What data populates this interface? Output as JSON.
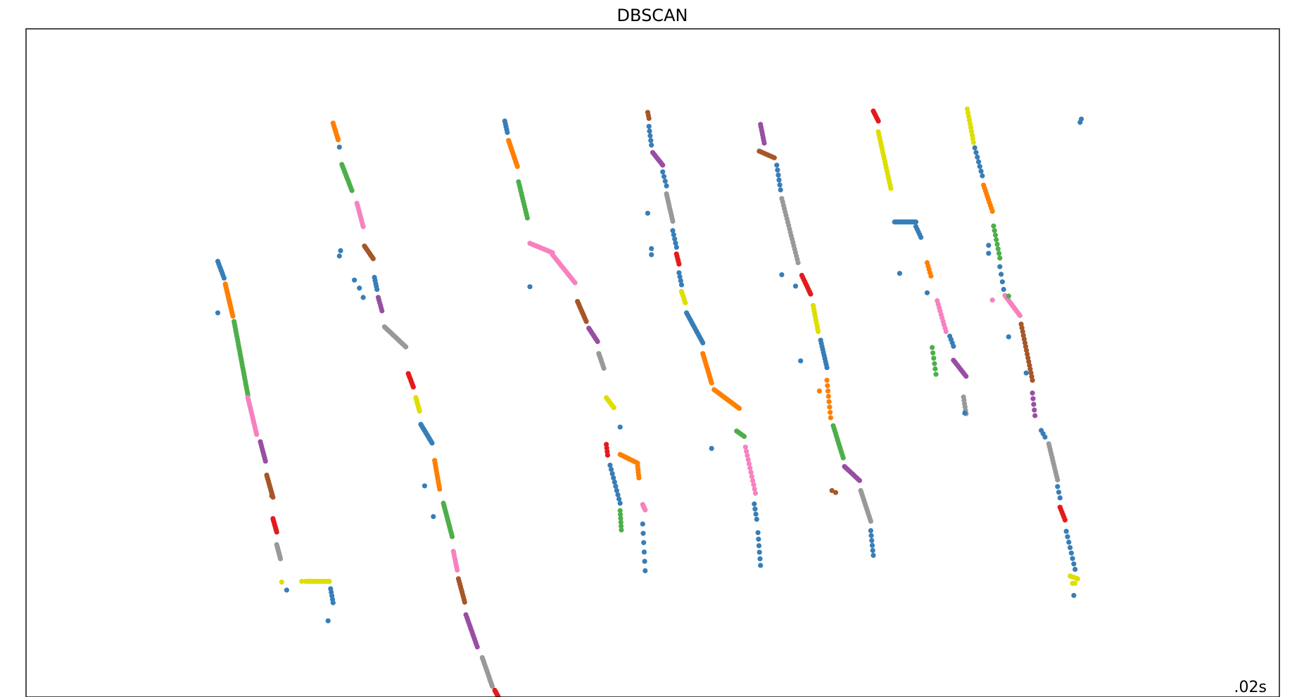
{
  "chart_data": {
    "type": "scatter",
    "title": "DBSCAN",
    "annotation": ".02s",
    "annotation_placement": "bottom-right",
    "xlabel": "",
    "ylabel": "",
    "xlim": [
      0,
      1
    ],
    "ylim": [
      0,
      1
    ],
    "axis_ticks": false,
    "grid": false,
    "legend": "none",
    "marker": "circle",
    "segments": [
      {
        "x0": 0.153,
        "y0": 0.652,
        "x1": 0.158,
        "y1": 0.627,
        "color": "#377eb8",
        "n": 8
      },
      {
        "x0": 0.159,
        "y0": 0.618,
        "x1": 0.165,
        "y1": 0.57,
        "color": "#ff7f00",
        "n": 18
      },
      {
        "x0": 0.166,
        "y0": 0.562,
        "x1": 0.177,
        "y1": 0.452,
        "color": "#4daf4a",
        "n": 30
      },
      {
        "x0": 0.177,
        "y0": 0.448,
        "x1": 0.184,
        "y1": 0.393,
        "color": "#f781bf",
        "n": 16
      },
      {
        "x0": 0.187,
        "y0": 0.382,
        "x1": 0.191,
        "y1": 0.353,
        "color": "#984ea3",
        "n": 9
      },
      {
        "x0": 0.192,
        "y0": 0.332,
        "x1": 0.197,
        "y1": 0.299,
        "color": "#a65628",
        "n": 12
      },
      {
        "x0": 0.197,
        "y0": 0.267,
        "x1": 0.2,
        "y1": 0.247,
        "color": "#e41a1c",
        "n": 8
      },
      {
        "x0": 0.2,
        "y0": 0.228,
        "x1": 0.203,
        "y1": 0.207,
        "color": "#999999",
        "n": 10
      },
      {
        "x0": 0.223,
        "y0": 0.173,
        "x1": 0.242,
        "y1": 0.173,
        "color": "#dede00",
        "n": 16
      },
      {
        "x0": 0.243,
        "y0": 0.162,
        "x1": 0.245,
        "y1": 0.141,
        "color": "#377eb8",
        "n": 5
      },
      {
        "x0": 0.245,
        "y0": 0.859,
        "x1": 0.249,
        "y1": 0.834,
        "color": "#ff7f00",
        "n": 9
      },
      {
        "x0": 0.252,
        "y0": 0.797,
        "x1": 0.26,
        "y1": 0.758,
        "color": "#4daf4a",
        "n": 15
      },
      {
        "x0": 0.264,
        "y0": 0.739,
        "x1": 0.269,
        "y1": 0.704,
        "color": "#f781bf",
        "n": 10
      },
      {
        "x0": 0.27,
        "y0": 0.675,
        "x1": 0.277,
        "y1": 0.656,
        "color": "#a65628",
        "n": 11
      },
      {
        "x0": 0.278,
        "y0": 0.628,
        "x1": 0.28,
        "y1": 0.61,
        "color": "#377eb8",
        "n": 5
      },
      {
        "x0": 0.281,
        "y0": 0.598,
        "x1": 0.284,
        "y1": 0.578,
        "color": "#984ea3",
        "n": 6
      },
      {
        "x0": 0.286,
        "y0": 0.554,
        "x1": 0.303,
        "y1": 0.524,
        "color": "#999999",
        "n": 22
      },
      {
        "x0": 0.305,
        "y0": 0.484,
        "x1": 0.309,
        "y1": 0.464,
        "color": "#e41a1c",
        "n": 8
      },
      {
        "x0": 0.311,
        "y0": 0.448,
        "x1": 0.314,
        "y1": 0.428,
        "color": "#dede00",
        "n": 9
      },
      {
        "x0": 0.315,
        "y0": 0.408,
        "x1": 0.324,
        "y1": 0.38,
        "color": "#377eb8",
        "n": 14
      },
      {
        "x0": 0.326,
        "y0": 0.354,
        "x1": 0.33,
        "y1": 0.311,
        "color": "#ff7f00",
        "n": 12
      },
      {
        "x0": 0.333,
        "y0": 0.29,
        "x1": 0.34,
        "y1": 0.24,
        "color": "#4daf4a",
        "n": 16
      },
      {
        "x0": 0.341,
        "y0": 0.218,
        "x1": 0.344,
        "y1": 0.19,
        "color": "#f781bf",
        "n": 8
      },
      {
        "x0": 0.345,
        "y0": 0.177,
        "x1": 0.35,
        "y1": 0.142,
        "color": "#a65628",
        "n": 10
      },
      {
        "x0": 0.351,
        "y0": 0.123,
        "x1": 0.36,
        "y1": 0.075,
        "color": "#984ea3",
        "n": 14
      },
      {
        "x0": 0.364,
        "y0": 0.059,
        "x1": 0.372,
        "y1": 0.016,
        "color": "#999999",
        "n": 14
      },
      {
        "x0": 0.374,
        "y0": 0.01,
        "x1": 0.378,
        "y1": -0.004,
        "color": "#e41a1c",
        "n": 8
      },
      {
        "x0": 0.382,
        "y0": 0.862,
        "x1": 0.384,
        "y1": 0.845,
        "color": "#377eb8",
        "n": 5
      },
      {
        "x0": 0.385,
        "y0": 0.833,
        "x1": 0.392,
        "y1": 0.794,
        "color": "#ff7f00",
        "n": 15
      },
      {
        "x0": 0.393,
        "y0": 0.771,
        "x1": 0.4,
        "y1": 0.717,
        "color": "#4daf4a",
        "n": 14
      },
      {
        "x0": 0.402,
        "y0": 0.679,
        "x1": 0.42,
        "y1": 0.665,
        "color": "#f781bf",
        "n": 18
      },
      {
        "x0": 0.42,
        "y0": 0.662,
        "x1": 0.438,
        "y1": 0.62,
        "color": "#f781bf",
        "n": 16
      },
      {
        "x0": 0.44,
        "y0": 0.592,
        "x1": 0.447,
        "y1": 0.562,
        "color": "#a65628",
        "n": 12
      },
      {
        "x0": 0.449,
        "y0": 0.552,
        "x1": 0.456,
        "y1": 0.532,
        "color": "#984ea3",
        "n": 10
      },
      {
        "x0": 0.457,
        "y0": 0.514,
        "x1": 0.461,
        "y1": 0.492,
        "color": "#999999",
        "n": 8
      },
      {
        "x0": 0.463,
        "y0": 0.448,
        "x1": 0.469,
        "y1": 0.433,
        "color": "#dede00",
        "n": 8
      },
      {
        "x0": 0.463,
        "y0": 0.378,
        "x1": 0.464,
        "y1": 0.362,
        "color": "#e41a1c",
        "n": 4
      },
      {
        "x0": 0.474,
        "y0": 0.363,
        "x1": 0.488,
        "y1": 0.35,
        "color": "#ff7f00",
        "n": 14
      },
      {
        "x0": 0.488,
        "y0": 0.345,
        "x1": 0.489,
        "y1": 0.328,
        "color": "#ff7f00",
        "n": 5
      },
      {
        "x0": 0.466,
        "y0": 0.347,
        "x1": 0.474,
        "y1": 0.29,
        "color": "#377eb8",
        "n": 10
      },
      {
        "x0": 0.474,
        "y0": 0.279,
        "x1": 0.475,
        "y1": 0.25,
        "color": "#4daf4a",
        "n": 6
      },
      {
        "x0": 0.492,
        "y0": 0.288,
        "x1": 0.494,
        "y1": 0.28,
        "color": "#f781bf",
        "n": 4
      },
      {
        "x0": 0.492,
        "y0": 0.259,
        "x1": 0.494,
        "y1": 0.189,
        "color": "#377eb8",
        "n": 6
      },
      {
        "x0": 0.496,
        "y0": 0.875,
        "x1": 0.497,
        "y1": 0.866,
        "color": "#a65628",
        "n": 3
      },
      {
        "x0": 0.497,
        "y0": 0.854,
        "x1": 0.499,
        "y1": 0.826,
        "color": "#377eb8",
        "n": 5
      },
      {
        "x0": 0.5,
        "y0": 0.815,
        "x1": 0.508,
        "y1": 0.796,
        "color": "#984ea3",
        "n": 10
      },
      {
        "x0": 0.508,
        "y0": 0.786,
        "x1": 0.511,
        "y1": 0.765,
        "color": "#377eb8",
        "n": 4
      },
      {
        "x0": 0.511,
        "y0": 0.753,
        "x1": 0.516,
        "y1": 0.712,
        "color": "#999999",
        "n": 12
      },
      {
        "x0": 0.516,
        "y0": 0.698,
        "x1": 0.519,
        "y1": 0.673,
        "color": "#377eb8",
        "n": 5
      },
      {
        "x0": 0.519,
        "y0": 0.663,
        "x1": 0.521,
        "y1": 0.648,
        "color": "#e41a1c",
        "n": 5
      },
      {
        "x0": 0.521,
        "y0": 0.635,
        "x1": 0.523,
        "y1": 0.617,
        "color": "#377eb8",
        "n": 4
      },
      {
        "x0": 0.523,
        "y0": 0.607,
        "x1": 0.526,
        "y1": 0.59,
        "color": "#dede00",
        "n": 6
      },
      {
        "x0": 0.527,
        "y0": 0.575,
        "x1": 0.54,
        "y1": 0.53,
        "color": "#377eb8",
        "n": 16
      },
      {
        "x0": 0.54,
        "y0": 0.514,
        "x1": 0.547,
        "y1": 0.47,
        "color": "#ff7f00",
        "n": 14
      },
      {
        "x0": 0.549,
        "y0": 0.46,
        "x1": 0.569,
        "y1": 0.432,
        "color": "#ff7f00",
        "n": 22
      },
      {
        "x0": 0.567,
        "y0": 0.398,
        "x1": 0.573,
        "y1": 0.39,
        "color": "#4daf4a",
        "n": 6
      },
      {
        "x0": 0.574,
        "y0": 0.374,
        "x1": 0.582,
        "y1": 0.305,
        "color": "#f781bf",
        "n": 12
      },
      {
        "x0": 0.581,
        "y0": 0.289,
        "x1": 0.583,
        "y1": 0.266,
        "color": "#377eb8",
        "n": 4
      },
      {
        "x0": 0.584,
        "y0": 0.246,
        "x1": 0.586,
        "y1": 0.197,
        "color": "#377eb8",
        "n": 6
      },
      {
        "x0": 0.586,
        "y0": 0.857,
        "x1": 0.589,
        "y1": 0.829,
        "color": "#984ea3",
        "n": 8
      },
      {
        "x0": 0.585,
        "y0": 0.817,
        "x1": 0.597,
        "y1": 0.807,
        "color": "#a65628",
        "n": 10
      },
      {
        "x0": 0.599,
        "y0": 0.796,
        "x1": 0.602,
        "y1": 0.759,
        "color": "#377eb8",
        "n": 6
      },
      {
        "x0": 0.603,
        "y0": 0.746,
        "x1": 0.616,
        "y1": 0.65,
        "color": "#999999",
        "n": 20
      },
      {
        "x0": 0.619,
        "y0": 0.631,
        "x1": 0.626,
        "y1": 0.603,
        "color": "#e41a1c",
        "n": 10
      },
      {
        "x0": 0.628,
        "y0": 0.586,
        "x1": 0.632,
        "y1": 0.547,
        "color": "#dede00",
        "n": 10
      },
      {
        "x0": 0.634,
        "y0": 0.534,
        "x1": 0.639,
        "y1": 0.493,
        "color": "#377eb8",
        "n": 10
      },
      {
        "x0": 0.639,
        "y0": 0.474,
        "x1": 0.642,
        "y1": 0.418,
        "color": "#ff7f00",
        "n": 8
      },
      {
        "x0": 0.644,
        "y0": 0.406,
        "x1": 0.652,
        "y1": 0.358,
        "color": "#4daf4a",
        "n": 14
      },
      {
        "x0": 0.653,
        "y0": 0.345,
        "x1": 0.665,
        "y1": 0.324,
        "color": "#984ea3",
        "n": 12
      },
      {
        "x0": 0.666,
        "y0": 0.309,
        "x1": 0.674,
        "y1": 0.263,
        "color": "#999999",
        "n": 14
      },
      {
        "x0": 0.674,
        "y0": 0.249,
        "x1": 0.676,
        "y1": 0.212,
        "color": "#377eb8",
        "n": 6
      },
      {
        "x0": 0.676,
        "y0": 0.877,
        "x1": 0.68,
        "y1": 0.862,
        "color": "#e41a1c",
        "n": 6
      },
      {
        "x0": 0.68,
        "y0": 0.846,
        "x1": 0.69,
        "y1": 0.761,
        "color": "#dede00",
        "n": 20
      },
      {
        "x0": 0.693,
        "y0": 0.711,
        "x1": 0.71,
        "y1": 0.711,
        "color": "#377eb8",
        "n": 18
      },
      {
        "x0": 0.71,
        "y0": 0.704,
        "x1": 0.714,
        "y1": 0.688,
        "color": "#377eb8",
        "n": 5
      },
      {
        "x0": 0.719,
        "y0": 0.65,
        "x1": 0.722,
        "y1": 0.63,
        "color": "#ff7f00",
        "n": 5
      },
      {
        "x0": 0.727,
        "y0": 0.593,
        "x1": 0.734,
        "y1": 0.547,
        "color": "#f781bf",
        "n": 10
      },
      {
        "x0": 0.723,
        "y0": 0.523,
        "x1": 0.726,
        "y1": 0.483,
        "color": "#4daf4a",
        "n": 6
      },
      {
        "x0": 0.737,
        "y0": 0.54,
        "x1": 0.74,
        "y1": 0.525,
        "color": "#377eb8",
        "n": 4
      },
      {
        "x0": 0.74,
        "y0": 0.504,
        "x1": 0.75,
        "y1": 0.48,
        "color": "#984ea3",
        "n": 10
      },
      {
        "x0": 0.748,
        "y0": 0.449,
        "x1": 0.75,
        "y1": 0.424,
        "color": "#999999",
        "n": 6
      },
      {
        "x0": 0.751,
        "y0": 0.88,
        "x1": 0.756,
        "y1": 0.83,
        "color": "#dede00",
        "n": 10
      },
      {
        "x0": 0.757,
        "y0": 0.822,
        "x1": 0.763,
        "y1": 0.78,
        "color": "#377eb8",
        "n": 7
      },
      {
        "x0": 0.764,
        "y0": 0.766,
        "x1": 0.771,
        "y1": 0.727,
        "color": "#ff7f00",
        "n": 10
      },
      {
        "x0": 0.772,
        "y0": 0.705,
        "x1": 0.777,
        "y1": 0.657,
        "color": "#4daf4a",
        "n": 8
      },
      {
        "x0": 0.777,
        "y0": 0.644,
        "x1": 0.78,
        "y1": 0.61,
        "color": "#377eb8",
        "n": 4
      },
      {
        "x0": 0.781,
        "y0": 0.601,
        "x1": 0.793,
        "y1": 0.571,
        "color": "#f781bf",
        "n": 14
      },
      {
        "x0": 0.794,
        "y0": 0.558,
        "x1": 0.803,
        "y1": 0.474,
        "color": "#a65628",
        "n": 16
      },
      {
        "x0": 0.803,
        "y0": 0.455,
        "x1": 0.805,
        "y1": 0.421,
        "color": "#984ea3",
        "n": 5
      },
      {
        "x0": 0.81,
        "y0": 0.399,
        "x1": 0.813,
        "y1": 0.389,
        "color": "#377eb8",
        "n": 3
      },
      {
        "x0": 0.816,
        "y0": 0.379,
        "x1": 0.823,
        "y1": 0.325,
        "color": "#999999",
        "n": 14
      },
      {
        "x0": 0.823,
        "y0": 0.315,
        "x1": 0.825,
        "y1": 0.298,
        "color": "#377eb8",
        "n": 3
      },
      {
        "x0": 0.825,
        "y0": 0.284,
        "x1": 0.829,
        "y1": 0.265,
        "color": "#e41a1c",
        "n": 6
      },
      {
        "x0": 0.83,
        "y0": 0.248,
        "x1": 0.837,
        "y1": 0.191,
        "color": "#377eb8",
        "n": 8
      },
      {
        "x0": 0.833,
        "y0": 0.181,
        "x1": 0.839,
        "y1": 0.177,
        "color": "#dede00",
        "n": 6
      },
      {
        "x0": 0.835,
        "y0": 0.17,
        "x1": 0.837,
        "y1": 0.17,
        "color": "#dede00",
        "n": 2
      },
      {
        "x0": 0.841,
        "y0": 0.86,
        "x1": 0.842,
        "y1": 0.865,
        "color": "#377eb8",
        "n": 2
      }
    ],
    "extra_points": [
      {
        "x": 0.153,
        "y": 0.575,
        "color": "#377eb8"
      },
      {
        "x": 0.196,
        "y": 0.301,
        "color": "#a65628"
      },
      {
        "x": 0.204,
        "y": 0.172,
        "color": "#dede00"
      },
      {
        "x": 0.208,
        "y": 0.16,
        "color": "#377eb8"
      },
      {
        "x": 0.22,
        "y": 0.173,
        "color": "#dede00"
      },
      {
        "x": 0.241,
        "y": 0.114,
        "color": "#377eb8"
      },
      {
        "x": 0.25,
        "y": 0.823,
        "color": "#377eb8"
      },
      {
        "x": 0.25,
        "y": 0.66,
        "color": "#377eb8"
      },
      {
        "x": 0.251,
        "y": 0.668,
        "color": "#377eb8"
      },
      {
        "x": 0.262,
        "y": 0.624,
        "color": "#377eb8"
      },
      {
        "x": 0.266,
        "y": 0.612,
        "color": "#377eb8"
      },
      {
        "x": 0.269,
        "y": 0.598,
        "color": "#377eb8"
      },
      {
        "x": 0.318,
        "y": 0.316,
        "color": "#377eb8"
      },
      {
        "x": 0.325,
        "y": 0.27,
        "color": "#377eb8"
      },
      {
        "x": 0.402,
        "y": 0.614,
        "color": "#377eb8"
      },
      {
        "x": 0.474,
        "y": 0.404,
        "color": "#377eb8"
      },
      {
        "x": 0.496,
        "y": 0.724,
        "color": "#377eb8"
      },
      {
        "x": 0.499,
        "y": 0.671,
        "color": "#377eb8"
      },
      {
        "x": 0.499,
        "y": 0.662,
        "color": "#377eb8"
      },
      {
        "x": 0.547,
        "y": 0.372,
        "color": "#377eb8"
      },
      {
        "x": 0.603,
        "y": 0.632,
        "color": "#377eb8"
      },
      {
        "x": 0.614,
        "y": 0.615,
        "color": "#377eb8"
      },
      {
        "x": 0.618,
        "y": 0.503,
        "color": "#377eb8"
      },
      {
        "x": 0.633,
        "y": 0.458,
        "color": "#ff7f00"
      },
      {
        "x": 0.646,
        "y": 0.306,
        "color": "#a65628"
      },
      {
        "x": 0.643,
        "y": 0.309,
        "color": "#a65628"
      },
      {
        "x": 0.697,
        "y": 0.634,
        "color": "#377eb8"
      },
      {
        "x": 0.719,
        "y": 0.605,
        "color": "#377eb8"
      },
      {
        "x": 0.749,
        "y": 0.425,
        "color": "#377eb8"
      },
      {
        "x": 0.768,
        "y": 0.676,
        "color": "#377eb8"
      },
      {
        "x": 0.768,
        "y": 0.664,
        "color": "#377eb8"
      },
      {
        "x": 0.771,
        "y": 0.594,
        "color": "#f781bf"
      },
      {
        "x": 0.784,
        "y": 0.6,
        "color": "#4daf4a"
      },
      {
        "x": 0.784,
        "y": 0.539,
        "color": "#377eb8"
      },
      {
        "x": 0.798,
        "y": 0.485,
        "color": "#377eb8"
      },
      {
        "x": 0.836,
        "y": 0.152,
        "color": "#377eb8"
      }
    ]
  }
}
